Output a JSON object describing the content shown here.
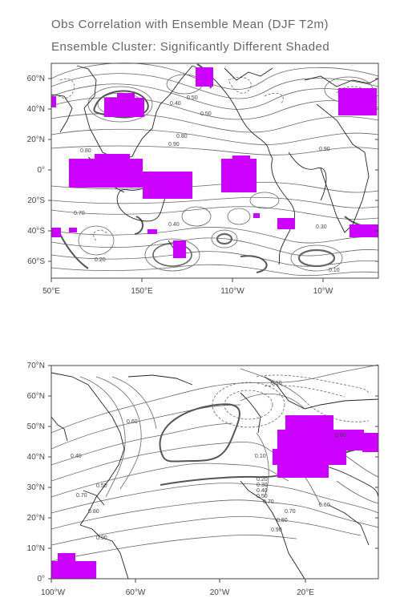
{
  "title_line1": "Obs Correlation with Ensemble Mean (DJF T2m)",
  "title_line2": "Ensemble Cluster: Significantly Different Shaded",
  "colors": {
    "shade": "#cc00ff",
    "contour": "#555555",
    "land": "#222222",
    "frame": "#444444"
  },
  "map_global": {
    "lat_labels": [
      "60°N",
      "40°N",
      "20°N",
      "0°",
      "20°S",
      "40°S",
      "60°S"
    ],
    "lon_labels": [
      "50°E",
      "150°E",
      "110°W",
      "10°W"
    ],
    "contour_labels": [
      "0.40",
      "0.50",
      "0.80",
      "0.90",
      "0.30",
      "0.70",
      "0.80",
      "0.90",
      "0.40",
      "0.20",
      "0.10",
      "0.50"
    ]
  },
  "map_atlantic": {
    "lat_labels": [
      "70°N",
      "60°N",
      "50°N",
      "40°N",
      "30°N",
      "20°N",
      "10°N",
      "0°"
    ],
    "lon_labels": [
      "100°W",
      "60°W",
      "20°W",
      "20°E"
    ],
    "contour_labels": [
      "0.10",
      "0.60",
      "0.40",
      "0.50",
      "0.70",
      "0.80",
      "0.90",
      "0.60",
      "0.70",
      "0.80",
      "0.90",
      "0.10",
      "0.20",
      "0.30",
      "0.40",
      "0.50",
      "0.60",
      "0.70"
    ]
  }
}
